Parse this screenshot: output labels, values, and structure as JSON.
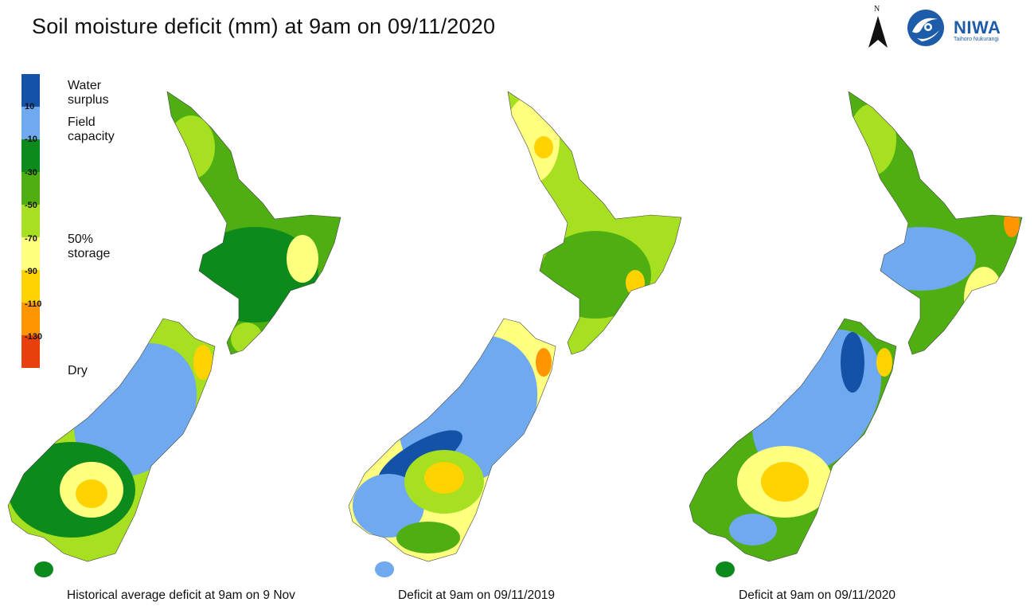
{
  "title": "Soil moisture deficit (mm) at  9am on 09/11/2020",
  "north_label": "N",
  "logo": {
    "name": "NIWA",
    "tagline": "Taihoro Nukurangi",
    "color": "#1d5ca8"
  },
  "legend": {
    "colors": [
      "#1452a8",
      "#6fa9ef",
      "#0c8a1c",
      "#4fae12",
      "#a6e021",
      "#ffff80",
      "#ffd200",
      "#ff9500",
      "#e8400c"
    ],
    "ticks": [
      "10",
      "-10",
      "-30",
      "-50",
      "-70",
      "-90",
      "-110",
      "-130"
    ],
    "labels": {
      "water_surplus": "Water surplus",
      "field_capacity": "Field capacity",
      "storage": "50% storage",
      "dry": "Dry"
    }
  },
  "maps": [
    {
      "caption": "Historical average deficit at 9am on 9 Nov"
    },
    {
      "caption": "Deficit at  9am on 09/11/2019"
    },
    {
      "caption": "Deficit at  9am on 09/11/2020"
    }
  ]
}
